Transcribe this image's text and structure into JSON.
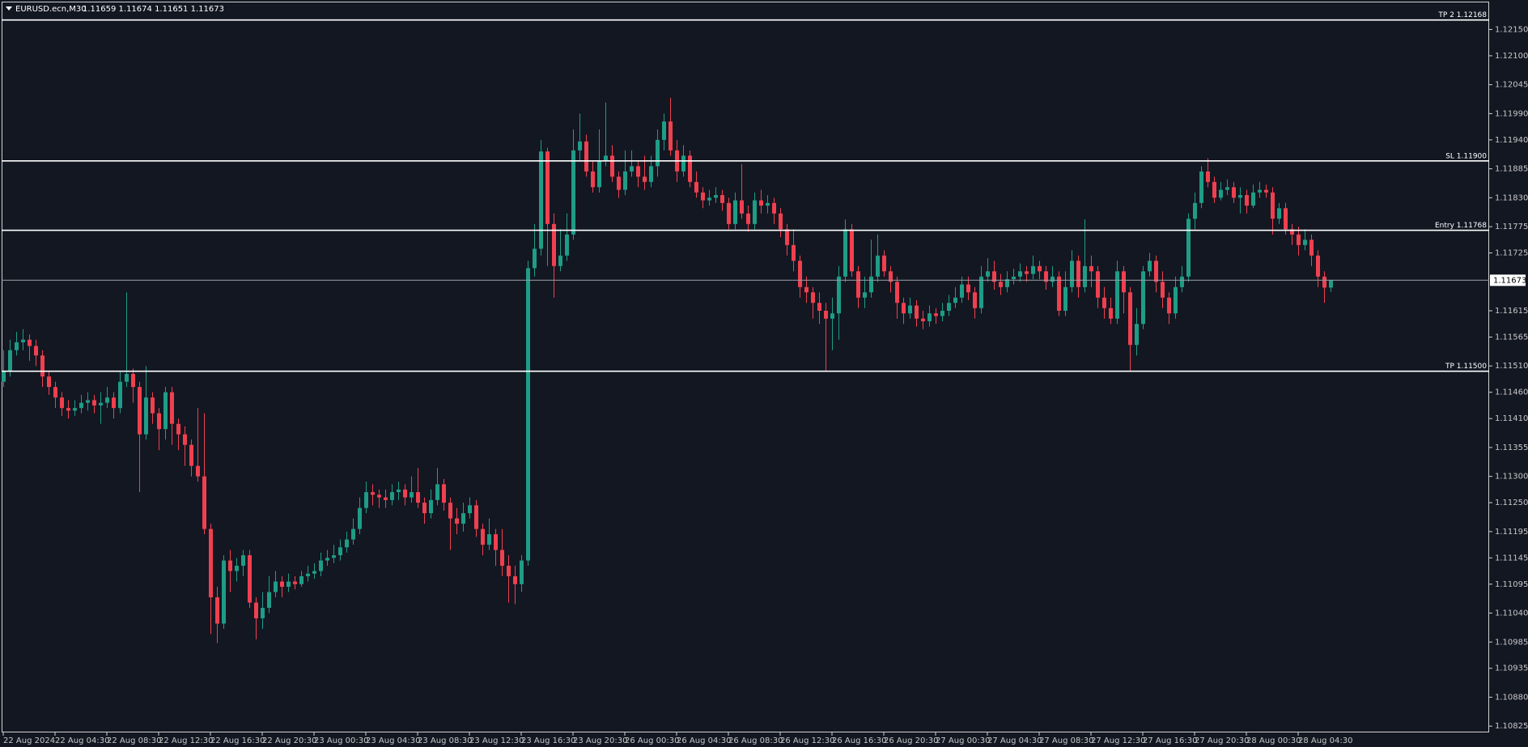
{
  "chart_data": {
    "type": "candlestick",
    "header": {
      "symbol": "EURUSD.ecn,M30",
      "ohlc": "1.11659 1.11674 1.11651 1.11673"
    },
    "background": "#131722",
    "up_color": "#1f9c86",
    "down_color": "#f0404f",
    "level_color": "#ffffff",
    "text_color": "#c8c8c8",
    "categories": [
      "22 Aug 2024",
      null,
      null,
      null,
      null,
      null,
      null,
      null,
      "22 Aug 04:30",
      null,
      null,
      null,
      null,
      null,
      null,
      null,
      "22 Aug 08:30",
      null,
      null,
      null,
      null,
      null,
      null,
      null,
      "22 Aug 12:30",
      null,
      null,
      null,
      null,
      null,
      null,
      null,
      "22 Aug 16:30",
      null,
      null,
      null,
      null,
      null,
      null,
      null,
      "22 Aug 20:30",
      null,
      null,
      null,
      null,
      null,
      null,
      null,
      "23 Aug 00:30",
      null,
      null,
      null,
      null,
      null,
      null,
      null,
      "23 Aug 04:30",
      null,
      null,
      null,
      null,
      null,
      null,
      null,
      "23 Aug 08:30",
      null,
      null,
      null,
      null,
      null,
      null,
      null,
      "23 Aug 12:30",
      null,
      null,
      null,
      null,
      null,
      null,
      null,
      "23 Aug 16:30",
      null,
      null,
      null,
      null,
      null,
      null,
      null,
      "23 Aug 20:30",
      null,
      null,
      null,
      null,
      null,
      null,
      null,
      "26 Aug 00:30",
      null,
      null,
      null,
      null,
      null,
      null,
      null,
      "26 Aug 04:30",
      null,
      null,
      null,
      null,
      null,
      null,
      null,
      "26 Aug 08:30",
      null,
      null,
      null,
      null,
      null,
      null,
      null,
      "26 Aug 12:30",
      null,
      null,
      null,
      null,
      null,
      null,
      null,
      "26 Aug 16:30",
      null,
      null,
      null,
      null,
      null,
      null,
      null,
      "26 Aug 20:30",
      null,
      null,
      null,
      null,
      null,
      null,
      null,
      "27 Aug 00:30",
      null,
      null,
      null,
      null,
      null,
      null,
      null,
      "27 Aug 04:30",
      null,
      null,
      null,
      null,
      null,
      null,
      null,
      "27 Aug 08:30",
      null,
      null,
      null,
      null,
      null,
      null,
      null,
      "27 Aug 12:30",
      null,
      null,
      null,
      null,
      null,
      null,
      null,
      "27 Aug 16:30",
      null,
      null,
      null,
      null,
      null,
      null,
      null,
      "27 Aug 20:30",
      null,
      null,
      null,
      null,
      null,
      null,
      null,
      "28 Aug 00:30",
      null,
      null,
      null,
      null,
      null,
      null,
      null,
      "28 Aug 04:30",
      null,
      null,
      null,
      null,
      null
    ],
    "open": [
      1.1148,
      1.11501,
      1.1154,
      1.11555,
      1.1156,
      1.11548,
      1.1153,
      1.1149,
      1.1147,
      1.1145,
      1.1143,
      1.11425,
      1.1143,
      1.1144,
      1.11445,
      1.11435,
      1.1144,
      1.1145,
      1.1143,
      1.1148,
      1.11495,
      1.1147,
      1.1138,
      1.1145,
      1.1142,
      1.1139,
      1.1146,
      1.114,
      1.1138,
      1.1136,
      1.1132,
      1.113,
      1.112,
      1.1107,
      1.1102,
      1.1114,
      1.1112,
      1.1113,
      1.1115,
      1.1106,
      1.1103,
      1.1105,
      1.1108,
      1.111,
      1.1109,
      1.111,
      1.11095,
      1.1111,
      1.11115,
      1.1112,
      1.1114,
      1.11145,
      1.1115,
      1.11165,
      1.1118,
      1.112,
      1.1124,
      1.1127,
      1.11265,
      1.1126,
      1.11255,
      1.1127,
      1.11275,
      1.1126,
      1.1127,
      1.1125,
      1.1123,
      1.11255,
      1.11285,
      1.1125,
      1.1122,
      1.1121,
      1.1123,
      1.11245,
      1.112,
      1.1117,
      1.1119,
      1.1116,
      1.1113,
      1.1111,
      1.11095,
      1.1114,
      1.11696,
      1.11733,
      1.11918,
      1.1178,
      1.117,
      1.1172,
      1.1176,
      1.1192,
      1.11937,
      1.1188,
      1.1185,
      1.119,
      1.1191,
      1.1187,
      1.11845,
      1.1188,
      1.1189,
      1.1187,
      1.1186,
      1.1189,
      1.1194,
      1.11975,
      1.1192,
      1.1188,
      1.1191,
      1.1186,
      1.1184,
      1.11825,
      1.1183,
      1.11835,
      1.1182,
      1.1178,
      1.11825,
      1.118,
      1.1178,
      1.11825,
      1.11815,
      1.1182,
      1.118,
      1.1177,
      1.1174,
      1.1171,
      1.1166,
      1.1165,
      1.1163,
      1.11615,
      1.116,
      1.1161,
      1.1168,
      1.1177,
      1.1169,
      1.1164,
      1.1165,
      1.1168,
      1.1172,
      1.1169,
      1.1167,
      1.1163,
      1.1161,
      1.11625,
      1.116,
      1.11595,
      1.1161,
      1.11605,
      1.11615,
      1.1163,
      1.1164,
      1.11665,
      1.1165,
      1.1162,
      1.1168,
      1.1169,
      1.1167,
      1.1166,
      1.11675,
      1.1168,
      1.1169,
      1.11685,
      1.117,
      1.1169,
      1.1167,
      1.1168,
      1.11615,
      1.1166,
      1.1171,
      1.1166,
      1.117,
      1.1169,
      1.1164,
      1.1162,
      1.116,
      1.1169,
      1.1165,
      1.1155,
      1.1159,
      1.1169,
      1.1171,
      1.1167,
      1.1164,
      1.1161,
      1.1166,
      1.1168,
      1.1179,
      1.1182,
      1.1188,
      1.1186,
      1.1183,
      1.11845,
      1.1185,
      1.1183,
      1.11835,
      1.11815,
      1.1184,
      1.11845,
      1.1184,
      1.1179,
      1.1181,
      1.1177,
      1.1176,
      1.1174,
      1.1175,
      1.1172,
      1.1168,
      1.11659
    ],
    "high": [
      1.1154,
      1.1156,
      1.11575,
      1.1158,
      1.1157,
      1.1156,
      1.1154,
      1.115,
      1.1148,
      1.1146,
      1.11445,
      1.11445,
      1.11455,
      1.1146,
      1.11455,
      1.1146,
      1.1147,
      1.1146,
      1.115,
      1.1165,
      1.11505,
      1.1148,
      1.1151,
      1.1146,
      1.1143,
      1.1147,
      1.1147,
      1.1141,
      1.11395,
      1.1137,
      1.1143,
      1.1142,
      1.1121,
      1.1109,
      1.1115,
      1.1116,
      1.11145,
      1.1116,
      1.1116,
      1.1107,
      1.1108,
      1.1111,
      1.1112,
      1.1111,
      1.11115,
      1.1111,
      1.1112,
      1.1113,
      1.11135,
      1.11155,
      1.1116,
      1.1117,
      1.1118,
      1.11195,
      1.1122,
      1.1126,
      1.1129,
      1.11285,
      1.11275,
      1.11275,
      1.11285,
      1.1129,
      1.11285,
      1.113,
      1.11316,
      1.1126,
      1.11275,
      1.11316,
      1.11295,
      1.1126,
      1.1124,
      1.1125,
      1.1126,
      1.11255,
      1.1121,
      1.1122,
      1.112,
      1.112,
      1.1115,
      1.1113,
      1.1115,
      1.1171,
      1.1178,
      1.1194,
      1.11925,
      1.118,
      1.1177,
      1.118,
      1.1196,
      1.1199,
      1.1195,
      1.119,
      1.1196,
      1.12011,
      1.1193,
      1.1188,
      1.1192,
      1.1192,
      1.119,
      1.1191,
      1.1191,
      1.1196,
      1.1199,
      1.1202,
      1.1194,
      1.1193,
      1.1192,
      1.1188,
      1.1185,
      1.11845,
      1.1185,
      1.11845,
      1.1183,
      1.1184,
      1.11894,
      1.11815,
      1.1184,
      1.11845,
      1.11835,
      1.1183,
      1.1181,
      1.1178,
      1.1177,
      1.1172,
      1.1168,
      1.1166,
      1.1165,
      1.1163,
      1.1164,
      1.117,
      1.11789,
      1.1178,
      1.117,
      1.1168,
      1.1175,
      1.1176,
      1.1173,
      1.117,
      1.1168,
      1.1164,
      1.1164,
      1.11635,
      1.11615,
      1.11625,
      1.1162,
      1.1163,
      1.11645,
      1.1166,
      1.1168,
      1.1168,
      1.1166,
      1.117,
      1.11715,
      1.1171,
      1.11685,
      1.1169,
      1.11695,
      1.11705,
      1.117,
      1.1172,
      1.1171,
      1.117,
      1.117,
      1.1169,
      1.1169,
      1.1173,
      1.1172,
      1.11789,
      1.1172,
      1.117,
      1.1166,
      1.1164,
      1.1171,
      1.117,
      1.1166,
      1.1162,
      1.117,
      1.11725,
      1.1172,
      1.1169,
      1.1165,
      1.1168,
      1.117,
      1.118,
      1.1184,
      1.1189,
      1.11905,
      1.1187,
      1.1186,
      1.11865,
      1.1186,
      1.1185,
      1.11845,
      1.11855,
      1.1186,
      1.11855,
      1.1185,
      1.1182,
      1.1182,
      1.1178,
      1.11775,
      1.1177,
      1.1176,
      1.1173,
      1.1169,
      1.11674
    ],
    "low": [
      1.1147,
      1.1149,
      1.1153,
      1.1154,
      1.1152,
      1.1151,
      1.1147,
      1.11455,
      1.1143,
      1.11415,
      1.1141,
      1.11415,
      1.1142,
      1.11425,
      1.1142,
      1.114,
      1.1143,
      1.1141,
      1.1142,
      1.1147,
      1.1144,
      1.1127,
      1.1137,
      1.114,
      1.1135,
      1.1137,
      1.1136,
      1.1135,
      1.1132,
      1.113,
      1.1129,
      1.1119,
      1.11,
      1.10983,
      1.1101,
      1.1108,
      1.111,
      1.1111,
      1.1105,
      1.1099,
      1.1101,
      1.1104,
      1.1107,
      1.1107,
      1.1108,
      1.11085,
      1.1109,
      1.111,
      1.11105,
      1.1111,
      1.1113,
      1.11135,
      1.1114,
      1.11155,
      1.1117,
      1.1119,
      1.1123,
      1.11245,
      1.1124,
      1.1124,
      1.11245,
      1.11255,
      1.11245,
      1.1125,
      1.1124,
      1.1121,
      1.1122,
      1.11245,
      1.11235,
      1.1116,
      1.1119,
      1.11195,
      1.1122,
      1.11185,
      1.1115,
      1.1116,
      1.1113,
      1.1111,
      1.1106,
      1.11057,
      1.1108,
      1.1113,
      1.1168,
      1.1172,
      1.117,
      1.1164,
      1.1169,
      1.1171,
      1.1175,
      1.119,
      1.1187,
      1.1184,
      1.1184,
      1.1189,
      1.1186,
      1.1183,
      1.11835,
      1.1187,
      1.1185,
      1.11845,
      1.1185,
      1.1187,
      1.1192,
      1.1191,
      1.1186,
      1.1187,
      1.1185,
      1.1183,
      1.1181,
      1.11815,
      1.1182,
      1.11805,
      1.1177,
      1.1177,
      1.1179,
      1.11765,
      1.1177,
      1.118,
      1.118,
      1.1178,
      1.11755,
      1.1172,
      1.1169,
      1.1164,
      1.1163,
      1.116,
      1.1159,
      1.11501,
      1.1154,
      1.1156,
      1.1167,
      1.1168,
      1.1162,
      1.1162,
      1.1164,
      1.1167,
      1.1168,
      1.1165,
      1.116,
      1.1159,
      1.116,
      1.11585,
      1.1158,
      1.11585,
      1.1159,
      1.11595,
      1.11605,
      1.1162,
      1.1163,
      1.11635,
      1.116,
      1.1161,
      1.1167,
      1.11655,
      1.11645,
      1.1165,
      1.11665,
      1.1167,
      1.1167,
      1.11675,
      1.11675,
      1.11655,
      1.1166,
      1.11605,
      1.11605,
      1.1165,
      1.1164,
      1.1165,
      1.1166,
      1.1162,
      1.116,
      1.1159,
      1.1159,
      1.1161,
      1.11501,
      1.1153,
      1.1158,
      1.1168,
      1.1165,
      1.1162,
      1.1159,
      1.116,
      1.1165,
      1.1167,
      1.1177,
      1.1181,
      1.1185,
      1.1182,
      1.11825,
      1.11835,
      1.1182,
      1.118,
      1.118,
      1.1181,
      1.1183,
      1.1183,
      1.1176,
      1.1178,
      1.1176,
      1.1174,
      1.1172,
      1.1173,
      1.117,
      1.1166,
      1.1163,
      1.11651
    ],
    "close": [
      1.11501,
      1.1154,
      1.11555,
      1.1156,
      1.11548,
      1.1153,
      1.1149,
      1.1147,
      1.1145,
      1.1143,
      1.11425,
      1.1143,
      1.1144,
      1.11445,
      1.11435,
      1.1144,
      1.1145,
      1.1143,
      1.1148,
      1.11495,
      1.1147,
      1.1138,
      1.1145,
      1.1142,
      1.1139,
      1.1146,
      1.114,
      1.1138,
      1.1136,
      1.1132,
      1.113,
      1.112,
      1.1107,
      1.1102,
      1.1114,
      1.1112,
      1.1113,
      1.1115,
      1.1106,
      1.1103,
      1.1105,
      1.1108,
      1.111,
      1.1109,
      1.111,
      1.11095,
      1.1111,
      1.11115,
      1.1112,
      1.1114,
      1.11145,
      1.1115,
      1.11165,
      1.1118,
      1.112,
      1.1124,
      1.1127,
      1.11265,
      1.1126,
      1.11255,
      1.1127,
      1.11275,
      1.1126,
      1.1127,
      1.1125,
      1.1123,
      1.11255,
      1.11285,
      1.1125,
      1.1122,
      1.1121,
      1.1123,
      1.11245,
      1.112,
      1.1117,
      1.1119,
      1.1116,
      1.1113,
      1.1111,
      1.11095,
      1.1114,
      1.11696,
      1.11733,
      1.11918,
      1.1178,
      1.117,
      1.1172,
      1.1176,
      1.1192,
      1.11937,
      1.1188,
      1.1185,
      1.119,
      1.1191,
      1.1187,
      1.11845,
      1.1188,
      1.1189,
      1.1187,
      1.1186,
      1.1189,
      1.1194,
      1.11975,
      1.1192,
      1.1188,
      1.1191,
      1.1186,
      1.1184,
      1.11825,
      1.1183,
      1.11835,
      1.1182,
      1.1178,
      1.11825,
      1.118,
      1.1178,
      1.11825,
      1.11815,
      1.1182,
      1.118,
      1.1177,
      1.1174,
      1.1171,
      1.1166,
      1.1165,
      1.1163,
      1.11615,
      1.116,
      1.1161,
      1.1168,
      1.1177,
      1.1169,
      1.1164,
      1.1165,
      1.1168,
      1.1172,
      1.1169,
      1.1167,
      1.1163,
      1.1161,
      1.11625,
      1.116,
      1.11595,
      1.1161,
      1.11605,
      1.11615,
      1.1163,
      1.1164,
      1.11665,
      1.1165,
      1.1162,
      1.1168,
      1.1169,
      1.1167,
      1.1166,
      1.11675,
      1.1168,
      1.1169,
      1.11685,
      1.117,
      1.1169,
      1.1167,
      1.1168,
      1.11615,
      1.1166,
      1.1171,
      1.1166,
      1.117,
      1.1169,
      1.1164,
      1.1162,
      1.116,
      1.1169,
      1.1165,
      1.1155,
      1.1159,
      1.1169,
      1.1171,
      1.1167,
      1.1164,
      1.1161,
      1.1166,
      1.1168,
      1.1179,
      1.1182,
      1.1188,
      1.1186,
      1.1183,
      1.11845,
      1.1185,
      1.1183,
      1.11835,
      1.11815,
      1.1184,
      1.11845,
      1.1184,
      1.1179,
      1.1181,
      1.1177,
      1.1176,
      1.1174,
      1.1175,
      1.1172,
      1.1168,
      1.11659,
      1.11673
    ],
    "ylim": [
      1.10813,
      1.12203
    ],
    "yticks": [
      {
        "value": 1.1215,
        "label": "1.12150"
      },
      {
        "value": 1.121,
        "label": "1.12100"
      },
      {
        "value": 1.12045,
        "label": "1.12045"
      },
      {
        "value": 1.1199,
        "label": "1.11990"
      },
      {
        "value": 1.1194,
        "label": "1.11940"
      },
      {
        "value": 1.11885,
        "label": "1.11885"
      },
      {
        "value": 1.1183,
        "label": "1.11830"
      },
      {
        "value": 1.11775,
        "label": "1.11775"
      },
      {
        "value": 1.11725,
        "label": "1.11725"
      },
      {
        "value": 1.11615,
        "label": "1.11615"
      },
      {
        "value": 1.11565,
        "label": "1.11565"
      },
      {
        "value": 1.1151,
        "label": "1.11510"
      },
      {
        "value": 1.1146,
        "label": "1.11460"
      },
      {
        "value": 1.1141,
        "label": "1.11410"
      },
      {
        "value": 1.11355,
        "label": "1.11355"
      },
      {
        "value": 1.113,
        "label": "1.11300"
      },
      {
        "value": 1.1125,
        "label": "1.11250"
      },
      {
        "value": 1.11195,
        "label": "1.11195"
      },
      {
        "value": 1.11145,
        "label": "1.11145"
      },
      {
        "value": 1.11095,
        "label": "1.11095"
      },
      {
        "value": 1.1104,
        "label": "1.11040"
      },
      {
        "value": 1.10985,
        "label": "1.10985"
      },
      {
        "value": 1.10935,
        "label": "1.10935"
      },
      {
        "value": 1.1088,
        "label": "1.10880"
      },
      {
        "value": 1.10825,
        "label": "1.10825"
      }
    ],
    "levels": [
      {
        "label": "TP 2 1.12168",
        "value": 1.12168
      },
      {
        "label": "SL 1.11900",
        "value": 1.119
      },
      {
        "label": "Entry 1.11768",
        "value": 1.11768
      },
      {
        "label": "TP 1.11500",
        "value": 1.115
      }
    ],
    "current_price": {
      "value": 1.11673,
      "label": "1.11673"
    }
  }
}
